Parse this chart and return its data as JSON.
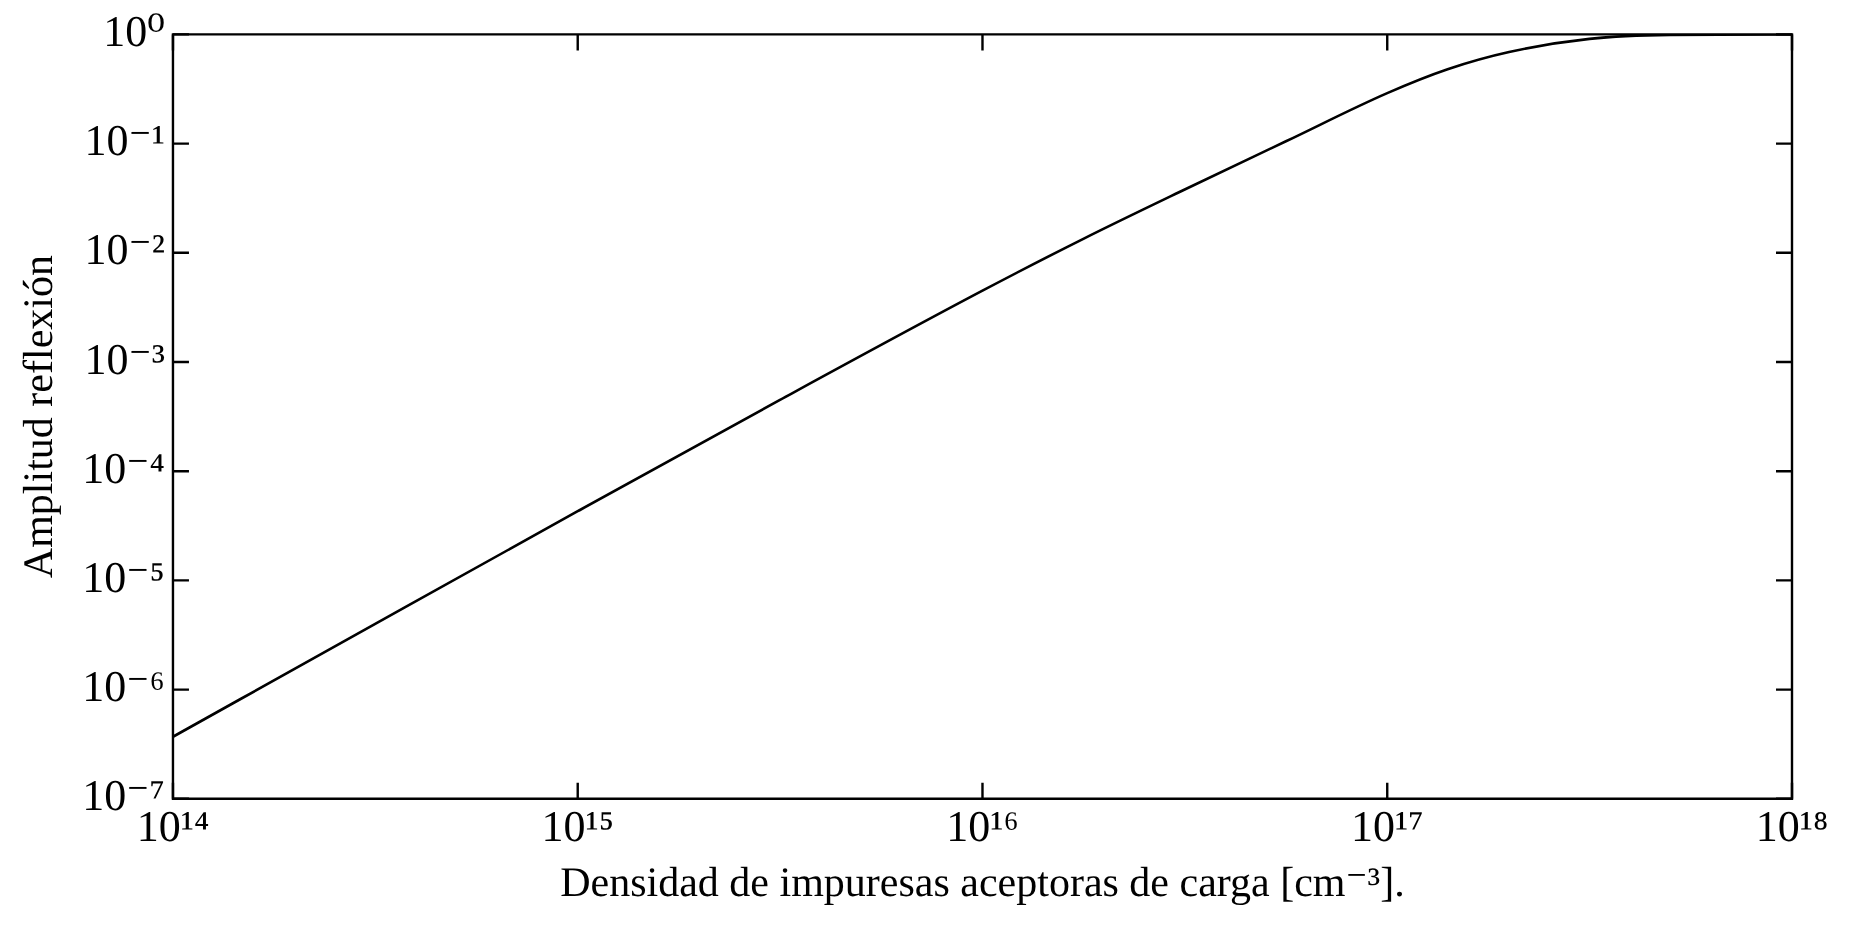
{
  "chart_data": {
    "type": "line",
    "xlabel": "Densidad de impuresas aceptoras de carga [cm⁻³].",
    "ylabel": "Amplitud reflexión",
    "log": "xy",
    "grid": false,
    "legend": false,
    "marker": "none",
    "line_style": "solid",
    "x": [
      100000000000000.0,
      316000000000000.0,
      1000000000000000.0,
      3160000000000000.0,
      1e+16,
      1.78e+16,
      3.16e+16,
      5.62e+16,
      1e+17,
      1.41e+17,
      2e+17,
      3.16e+17,
      5e+17,
      1e+18
    ],
    "series": [
      {
        "color": "#000000",
        "values": [
          3.7e-07,
          4e-06,
          4.3e-05,
          0.00045,
          0.0045,
          0.0135,
          0.038,
          0.105,
          0.29,
          0.48,
          0.69,
          0.91,
          0.99,
          1.0
        ]
      }
    ],
    "xlim": [
      100000000000000.0,
      1e+18
    ],
    "ylim": [
      1e-07,
      1
    ],
    "xticks": [
      {
        "value": 100000000000000.0,
        "label": "10¹⁴"
      },
      {
        "value": 1000000000000000.0,
        "label": "10¹⁵"
      },
      {
        "value": 1e+16,
        "label": "10¹⁶"
      },
      {
        "value": 1e+17,
        "label": "10¹⁷"
      },
      {
        "value": 1e+18,
        "label": "10¹⁸"
      }
    ],
    "yticks": [
      {
        "value": 1e-07,
        "label": "10⁻⁷"
      },
      {
        "value": 1e-06,
        "label": "10⁻⁶"
      },
      {
        "value": 1e-05,
        "label": "10⁻⁵"
      },
      {
        "value": 0.0001,
        "label": "10⁻⁴"
      },
      {
        "value": 0.001,
        "label": "10⁻³"
      },
      {
        "value": 0.01,
        "label": "10⁻²"
      },
      {
        "value": 0.1,
        "label": "10⁻¹"
      },
      {
        "value": 1,
        "label": "10⁰"
      }
    ]
  }
}
